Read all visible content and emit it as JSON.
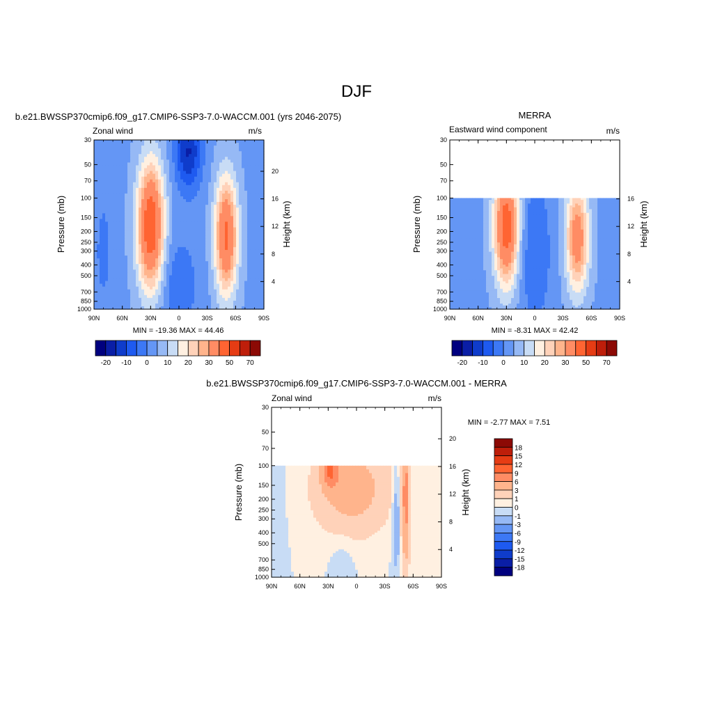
{
  "figure": {
    "title": "DJF"
  },
  "colors": {
    "model_obs_palette": [
      "#00007f",
      "#0a1ea6",
      "#0f3ccb",
      "#1e5af0",
      "#3c78f5",
      "#6496f5",
      "#96b9f5",
      "#c8dcf5",
      "#fff0e1",
      "#ffd2b9",
      "#ffb48c",
      "#ff8c64",
      "#ff6432",
      "#e63c14",
      "#be1e0a",
      "#8c0a05"
    ],
    "diff_palette": [
      "#00007f",
      "#0a1ea6",
      "#0f3ccb",
      "#1e5af0",
      "#3c78f5",
      "#6496f5",
      "#96b9f5",
      "#c8dcf5",
      "#fff0e1",
      "#ffd2b9",
      "#ffb48c",
      "#ff8c64",
      "#ff6432",
      "#e63c14",
      "#be1e0a",
      "#8c0a05"
    ]
  },
  "chart_data": [
    {
      "type": "heatmap",
      "id": "model",
      "title": "b.e21.BWSSP370cmip6.f09_g17.CMIP6-SSP3-7.0-WACCM.001 (yrs 2046-2075)",
      "left_label": "Zonal wind",
      "right_label": "m/s",
      "xlabel": "",
      "ylabel": "Pressure (mb)",
      "ylabel_right": "Height (km)",
      "x_ticks": [
        "90N",
        "60N",
        "30N",
        "0",
        "30S",
        "60S",
        "90S"
      ],
      "y_ticks": [
        "30",
        "50",
        "70",
        "100",
        "150",
        "200",
        "250",
        "300",
        "400",
        "500",
        "700",
        "850",
        "1000"
      ],
      "height_ticks": [
        "20",
        "16",
        "12",
        "8",
        "4"
      ],
      "xlim": [
        90,
        -90
      ],
      "ylim_mb": [
        1000,
        30
      ],
      "y_scale": "log",
      "data_top_mb": 30,
      "stats": "MIN = -19.36  MAX =  44.46",
      "min": -19.36,
      "max": 44.46,
      "colorbar": {
        "orientation": "horizontal",
        "levels": [
          -25,
          -20,
          -15,
          -10,
          -5,
          0,
          5,
          10,
          15,
          20,
          25,
          30,
          40,
          50,
          60,
          70
        ],
        "tick_labels": [
          "-20",
          "-10",
          "0",
          "10",
          "20",
          "30",
          "50",
          "70"
        ]
      },
      "features": [
        {
          "lat": 30,
          "p": 180,
          "value": 44.46,
          "lat_width": 14,
          "depth": 1.3
        },
        {
          "lat": -50,
          "p": 220,
          "value": 38,
          "lat_width": 12,
          "depth": 1.2
        },
        {
          "lat": -10,
          "p": 38,
          "value": -19.36,
          "lat_width": 14,
          "depth": 0.8
        },
        {
          "lat": 80,
          "p": 300,
          "value": -5,
          "lat_width": 12,
          "depth": 1.6
        },
        {
          "lat": 0,
          "p": 600,
          "value": -8,
          "lat_width": 20,
          "depth": 1.0
        }
      ]
    },
    {
      "type": "heatmap",
      "id": "obs",
      "title": "MERRA",
      "left_label": "Eastward wind component",
      "right_label": "m/s",
      "xlabel": "",
      "ylabel": "Pressure (mb)",
      "ylabel_right": "Height (km)",
      "x_ticks": [
        "90N",
        "60N",
        "30N",
        "0",
        "30S",
        "60S",
        "90S"
      ],
      "y_ticks": [
        "30",
        "50",
        "70",
        "100",
        "150",
        "200",
        "250",
        "300",
        "400",
        "500",
        "700",
        "850",
        "1000"
      ],
      "height_ticks": [
        "16",
        "12",
        "8",
        "4"
      ],
      "xlim": [
        90,
        -90
      ],
      "ylim_mb": [
        1000,
        30
      ],
      "y_scale": "log",
      "data_top_mb": 100,
      "stats": "MIN =  -8.31  MAX =  42.42",
      "min": -8.31,
      "max": 42.42,
      "colorbar": {
        "orientation": "horizontal",
        "levels": [
          -25,
          -20,
          -15,
          -10,
          -5,
          0,
          5,
          10,
          15,
          20,
          25,
          30,
          40,
          50,
          60,
          70
        ],
        "tick_labels": [
          "-20",
          "-10",
          "0",
          "10",
          "20",
          "30",
          "50",
          "70"
        ]
      },
      "features": [
        {
          "lat": 30,
          "p": 180,
          "value": 42.42,
          "lat_width": 13,
          "depth": 1.2
        },
        {
          "lat": -45,
          "p": 230,
          "value": 32,
          "lat_width": 12,
          "depth": 1.1
        },
        {
          "lat": 0,
          "p": 300,
          "value": -8.31,
          "lat_width": 18,
          "depth": 1.6
        },
        {
          "lat": 80,
          "p": 400,
          "value": -3,
          "lat_width": 12,
          "depth": 1.6
        }
      ]
    },
    {
      "type": "heatmap",
      "id": "diff",
      "title": "b.e21.BWSSP370cmip6.f09_g17.CMIP6-SSP3-7.0-WACCM.001 - MERRA",
      "left_label": "Zonal wind",
      "right_label": "m/s",
      "xlabel": "",
      "ylabel": "Pressure (mb)",
      "ylabel_right": "Height (km)",
      "x_ticks": [
        "90N",
        "60N",
        "30N",
        "0",
        "30S",
        "60S",
        "90S"
      ],
      "y_ticks": [
        "30",
        "50",
        "70",
        "100",
        "150",
        "200",
        "250",
        "300",
        "400",
        "500",
        "700",
        "850",
        "1000"
      ],
      "height_ticks": [
        "20",
        "16",
        "12",
        "8",
        "4"
      ],
      "xlim": [
        90,
        -90
      ],
      "ylim_mb": [
        1000,
        30
      ],
      "y_scale": "log",
      "data_top_mb": 100,
      "stats": "MIN =  -2.77  MAX =   7.51",
      "min": -2.77,
      "max": 7.51,
      "colorbar": {
        "orientation": "vertical",
        "levels": [
          -21,
          -18,
          -15,
          -12,
          -9,
          -6,
          -3,
          -1,
          0,
          1,
          3,
          6,
          9,
          12,
          15,
          18
        ],
        "tick_labels": [
          "18",
          "15",
          "12",
          "9",
          "6",
          "3",
          "1",
          "0",
          "-1",
          "-3",
          "-6",
          "-9",
          "-12",
          "-15",
          "-18"
        ]
      },
      "features": [
        {
          "lat": 28,
          "p": 110,
          "value": 7.51,
          "lat_width": 9,
          "depth": 0.35
        },
        {
          "lat": -52,
          "p": 200,
          "value": 7.0,
          "lat_width": 4,
          "depth": 1.4
        },
        {
          "lat": 5,
          "p": 160,
          "value": 4.5,
          "lat_width": 38,
          "depth": 0.9
        },
        {
          "lat": -42,
          "p": 300,
          "value": -2.77,
          "lat_width": 4,
          "depth": 1.0
        },
        {
          "lat": 85,
          "p": 450,
          "value": -0.8,
          "lat_width": 8,
          "depth": 2.2
        },
        {
          "lat": 15,
          "p": 700,
          "value": -0.7,
          "lat_width": 12,
          "depth": 0.6
        }
      ]
    }
  ]
}
